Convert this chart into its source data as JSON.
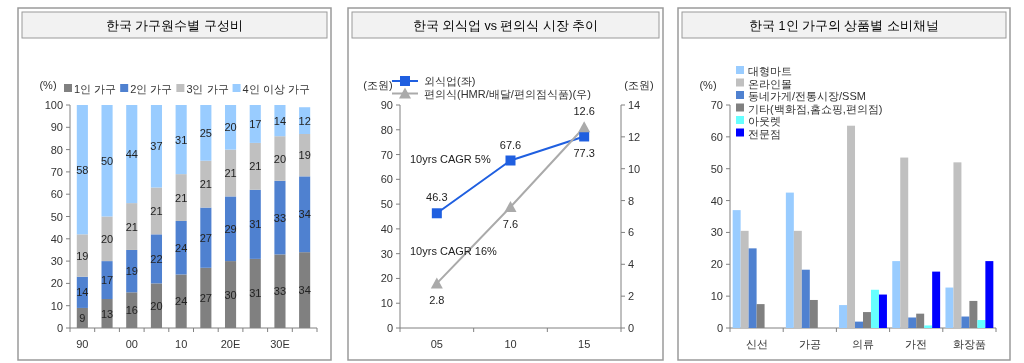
{
  "chart_data": [
    {
      "type": "bar",
      "title": "한국 가구원수별 구성비",
      "ylabel": "(%)",
      "stacked": true,
      "data_labels": true,
      "legend": "top",
      "categories": [
        "90",
        null,
        "00",
        null,
        "10",
        null,
        "20E",
        null,
        "30E",
        null
      ],
      "ylim": [
        0,
        100
      ],
      "yticks": [
        0,
        10,
        20,
        30,
        40,
        50,
        60,
        70,
        80,
        90,
        100
      ],
      "series": [
        {
          "name": "1인 가구",
          "color": "#808080",
          "values": [
            9,
            13,
            16,
            20,
            24,
            27,
            30,
            31,
            33,
            34
          ]
        },
        {
          "name": "2인 가구",
          "color": "#4f81d0",
          "values": [
            14,
            17,
            19,
            22,
            24,
            27,
            29,
            31,
            33,
            34
          ]
        },
        {
          "name": "3인 가구",
          "color": "#c0c0c0",
          "values": [
            19,
            20,
            21,
            21,
            21,
            21,
            21,
            21,
            20,
            19
          ]
        },
        {
          "name": "4인 이상 가구",
          "color": "#99ccff",
          "values": [
            58,
            50,
            44,
            37,
            31,
            25,
            20,
            17,
            14,
            12
          ]
        }
      ]
    },
    {
      "type": "line",
      "title": "한국 외식업 vs 편의식 시장 추이",
      "ylabel": "(조원)",
      "y2label": "(조원)",
      "data_labels": true,
      "legend": "top left",
      "categories": [
        "05",
        "10",
        "15"
      ],
      "ylim": [
        0,
        90
      ],
      "yticks": [
        0,
        10,
        20,
        30,
        40,
        50,
        60,
        70,
        80,
        90
      ],
      "y2lim": [
        0,
        14
      ],
      "y2ticks": [
        0,
        2,
        4,
        6,
        8,
        10,
        12,
        14
      ],
      "series": [
        {
          "name": "외식업(좌)",
          "color": "#1f5fe0",
          "marker": "square",
          "values": [
            46.3,
            67.6,
            77.3
          ]
        },
        {
          "name": "편의식(HMR/배달/편의점식품)(우)",
          "color": "#aaaaaa",
          "marker": "triangle",
          "axis": "y2",
          "values": [
            2.8,
            7.6,
            12.6
          ]
        }
      ],
      "annotations": [
        "10yrs CAGR 5%",
        "10yrs CAGR 16%"
      ]
    },
    {
      "type": "bar",
      "title": "한국 1인 가구의 상품별 소비채널",
      "ylabel": "(%)",
      "legend": "top left",
      "categories": [
        "신선",
        "가공",
        "의류",
        "가전",
        "화장품"
      ],
      "ylim": [
        0,
        70
      ],
      "yticks": [
        0,
        10,
        20,
        30,
        40,
        50,
        60,
        70
      ],
      "series": [
        {
          "name": "대형마트",
          "color": "#99ccff",
          "values": [
            37,
            42.5,
            7.2,
            21,
            12.7
          ]
        },
        {
          "name": "온라인몰",
          "color": "#c0c0c0",
          "values": [
            30.5,
            30.5,
            63.5,
            53.5,
            52
          ]
        },
        {
          "name": "동네가게/전통시장/SSM",
          "color": "#4f81d0",
          "values": [
            25,
            18.3,
            2,
            3.3,
            3.6
          ]
        },
        {
          "name": "기타(백화점,홈쇼핑,편의점)",
          "color": "#808080",
          "values": [
            7.5,
            8.8,
            5,
            4.5,
            8.5
          ]
        },
        {
          "name": "아웃렛",
          "color": "#66ffff",
          "values": [
            null,
            null,
            12,
            0.8,
            2.5
          ]
        },
        {
          "name": "전문점",
          "color": "#0000ff",
          "values": [
            null,
            null,
            10.5,
            17.7,
            21
          ]
        }
      ]
    }
  ]
}
